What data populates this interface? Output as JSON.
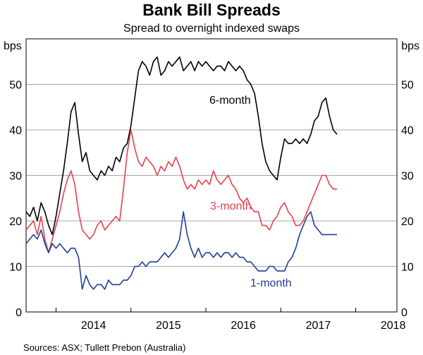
{
  "chart_data": {
    "type": "line",
    "title": "Bank Bill Spreads",
    "subtitle": "Spread to overnight indexed swaps",
    "ylabel_left": "bps",
    "ylabel_right": "bps",
    "ylim": [
      0,
      60
    ],
    "yticks": [
      0,
      10,
      20,
      30,
      40,
      50
    ],
    "xlim": [
      2013.6,
      2018.55
    ],
    "xticks": [
      "2014",
      "2015",
      "2016",
      "2017",
      "2018"
    ],
    "grid": true,
    "source": "Sources: ASX; Tullett Prebon (Australia)",
    "series": [
      {
        "name": "6-month",
        "color": "#000000",
        "x": [
          2013.6,
          2013.65,
          2013.7,
          2013.75,
          2013.8,
          2013.85,
          2013.9,
          2013.95,
          2014.0,
          2014.05,
          2014.1,
          2014.15,
          2014.2,
          2014.25,
          2014.3,
          2014.35,
          2014.4,
          2014.45,
          2014.5,
          2014.55,
          2014.6,
          2014.65,
          2014.7,
          2014.75,
          2014.8,
          2014.85,
          2014.9,
          2014.95,
          2015.0,
          2015.05,
          2015.1,
          2015.15,
          2015.2,
          2015.25,
          2015.3,
          2015.35,
          2015.4,
          2015.45,
          2015.5,
          2015.55,
          2015.6,
          2015.65,
          2015.7,
          2015.75,
          2015.8,
          2015.85,
          2015.9,
          2015.95,
          2016.0,
          2016.05,
          2016.1,
          2016.15,
          2016.2,
          2016.25,
          2016.3,
          2016.35,
          2016.4,
          2016.45,
          2016.5,
          2016.55,
          2016.6,
          2016.65,
          2016.7,
          2016.75,
          2016.8,
          2016.85,
          2016.9,
          2016.95,
          2017.0,
          2017.05,
          2017.1,
          2017.15,
          2017.2,
          2017.25,
          2017.3,
          2017.35,
          2017.4,
          2017.45,
          2017.5,
          2017.55,
          2017.6,
          2017.65,
          2017.7,
          2017.75
        ],
        "values": [
          22,
          21,
          23,
          20,
          24,
          22,
          19,
          17,
          21,
          26,
          31,
          37,
          44,
          46,
          39,
          33,
          35,
          31,
          30,
          29,
          31,
          30,
          32,
          31,
          34,
          33,
          36,
          37,
          41,
          47,
          53,
          55,
          54,
          52,
          55,
          56,
          52,
          53,
          55,
          54,
          55,
          56,
          53,
          54,
          55,
          53,
          55,
          54,
          55,
          54,
          53,
          54,
          54,
          53,
          55,
          54,
          53,
          54,
          53,
          51,
          50,
          48,
          43,
          37,
          33,
          31,
          30,
          29,
          34,
          38,
          37,
          37,
          38,
          37,
          38,
          37,
          39,
          42,
          43,
          46,
          47,
          43,
          40,
          39
        ]
      },
      {
        "name": "3-month",
        "color": "#e8414b",
        "x": [
          2013.6,
          2013.65,
          2013.7,
          2013.75,
          2013.8,
          2013.85,
          2013.9,
          2013.95,
          2014.0,
          2014.05,
          2014.1,
          2014.15,
          2014.2,
          2014.25,
          2014.3,
          2014.35,
          2014.4,
          2014.45,
          2014.5,
          2014.55,
          2014.6,
          2014.65,
          2014.7,
          2014.75,
          2014.8,
          2014.85,
          2014.9,
          2014.95,
          2015.0,
          2015.05,
          2015.1,
          2015.15,
          2015.2,
          2015.25,
          2015.3,
          2015.35,
          2015.4,
          2015.45,
          2015.5,
          2015.55,
          2015.6,
          2015.65,
          2015.7,
          2015.75,
          2015.8,
          2015.85,
          2015.9,
          2015.95,
          2016.0,
          2016.05,
          2016.1,
          2016.15,
          2016.2,
          2016.25,
          2016.3,
          2016.35,
          2016.4,
          2016.45,
          2016.5,
          2016.55,
          2016.6,
          2016.65,
          2016.7,
          2016.75,
          2016.8,
          2016.85,
          2016.9,
          2016.95,
          2017.0,
          2017.05,
          2017.1,
          2017.15,
          2017.2,
          2017.25,
          2017.3,
          2017.35,
          2017.4,
          2017.45,
          2017.5,
          2017.55,
          2017.6,
          2017.65,
          2017.7,
          2017.75
        ],
        "values": [
          18,
          19,
          20,
          17,
          21,
          16,
          13,
          16,
          19,
          22,
          26,
          29,
          31,
          28,
          22,
          18,
          17,
          16,
          17,
          19,
          20,
          18,
          19,
          20,
          21,
          20,
          27,
          35,
          40,
          36,
          33,
          32,
          34,
          33,
          32,
          30,
          32,
          31,
          33,
          32,
          34,
          32,
          29,
          27,
          28,
          27,
          29,
          28,
          29,
          28,
          31,
          29,
          28,
          29,
          30,
          28,
          27,
          25,
          24,
          25,
          23,
          22,
          22,
          19,
          19,
          18,
          20,
          21,
          23,
          24,
          22,
          21,
          19,
          19,
          20,
          22,
          24,
          26,
          28,
          30,
          30,
          28,
          27,
          27
        ]
      },
      {
        "name": "1-month",
        "color": "#1f3f95",
        "x": [
          2013.6,
          2013.65,
          2013.7,
          2013.75,
          2013.8,
          2013.85,
          2013.9,
          2013.95,
          2014.0,
          2014.05,
          2014.1,
          2014.15,
          2014.2,
          2014.25,
          2014.3,
          2014.35,
          2014.4,
          2014.45,
          2014.5,
          2014.55,
          2014.6,
          2014.65,
          2014.7,
          2014.75,
          2014.8,
          2014.85,
          2014.9,
          2014.95,
          2015.0,
          2015.05,
          2015.1,
          2015.15,
          2015.2,
          2015.25,
          2015.3,
          2015.35,
          2015.4,
          2015.45,
          2015.5,
          2015.55,
          2015.6,
          2015.65,
          2015.7,
          2015.75,
          2015.8,
          2015.85,
          2015.9,
          2015.95,
          2016.0,
          2016.05,
          2016.1,
          2016.15,
          2016.2,
          2016.25,
          2016.3,
          2016.35,
          2016.4,
          2016.45,
          2016.5,
          2016.55,
          2016.6,
          2016.65,
          2016.7,
          2016.75,
          2016.8,
          2016.85,
          2016.9,
          2016.95,
          2017.0,
          2017.05,
          2017.1,
          2017.15,
          2017.2,
          2017.25,
          2017.3,
          2017.35,
          2017.4,
          2017.45,
          2017.5,
          2017.55,
          2017.6,
          2017.65,
          2017.7,
          2017.75
        ],
        "values": [
          15,
          16,
          17,
          16,
          18,
          15,
          13,
          15,
          14,
          15,
          14,
          13,
          14,
          14,
          12,
          5,
          8,
          6,
          5,
          6,
          6,
          5,
          7,
          6,
          6,
          6,
          7,
          7,
          8,
          10,
          10,
          11,
          10,
          11,
          11,
          11,
          12,
          13,
          12,
          13,
          14,
          16,
          22,
          17,
          14,
          12,
          14,
          12,
          13,
          13,
          12,
          13,
          12,
          13,
          13,
          12,
          13,
          12,
          12,
          11,
          11,
          10,
          9,
          9,
          9,
          10,
          10,
          9,
          9,
          9,
          11,
          12,
          14,
          17,
          19,
          21,
          22,
          19,
          18,
          17,
          17,
          17,
          17,
          17
        ]
      }
    ],
    "series_labels": {
      "six_month": "6-month",
      "three_month": "3-month",
      "one_month": "1-month"
    }
  }
}
